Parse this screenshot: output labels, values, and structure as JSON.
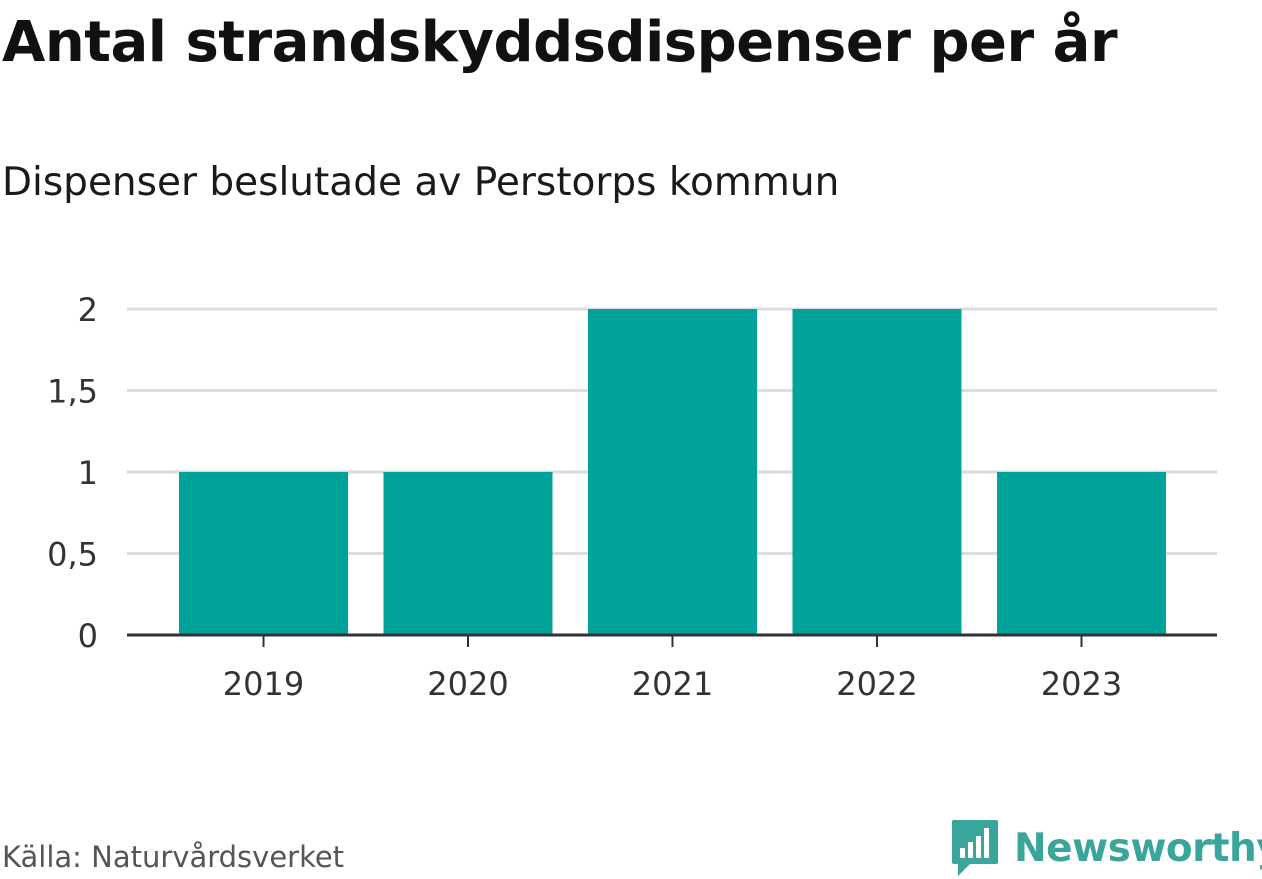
{
  "header": {
    "title": "Antal strandskyddsdispenser per år",
    "subtitle": "Dispenser beslutade av Perstorps kommun"
  },
  "footer": {
    "source": "Källa: Naturvårdsverket",
    "brand": "Newsworthy",
    "brand_icon": "bar-chart-icon"
  },
  "colors": {
    "bar": "#00a39a",
    "grid": "#dddddd",
    "axis": "#333333",
    "brand": "#3aa59a"
  },
  "chart_data": {
    "type": "bar",
    "categories": [
      "2019",
      "2020",
      "2021",
      "2022",
      "2023"
    ],
    "values": [
      1,
      1,
      2,
      2,
      1
    ],
    "title": "Antal strandskyddsdispenser per år",
    "subtitle": "Dispenser beslutade av Perstorps kommun",
    "xlabel": "",
    "ylabel": "",
    "ylim": [
      0,
      2
    ],
    "yticks": [
      0,
      0.5,
      1,
      1.5,
      2
    ],
    "ytick_labels": [
      "0",
      "0,5",
      "1",
      "1,5",
      "2"
    ],
    "grid": true,
    "legend": "none"
  }
}
